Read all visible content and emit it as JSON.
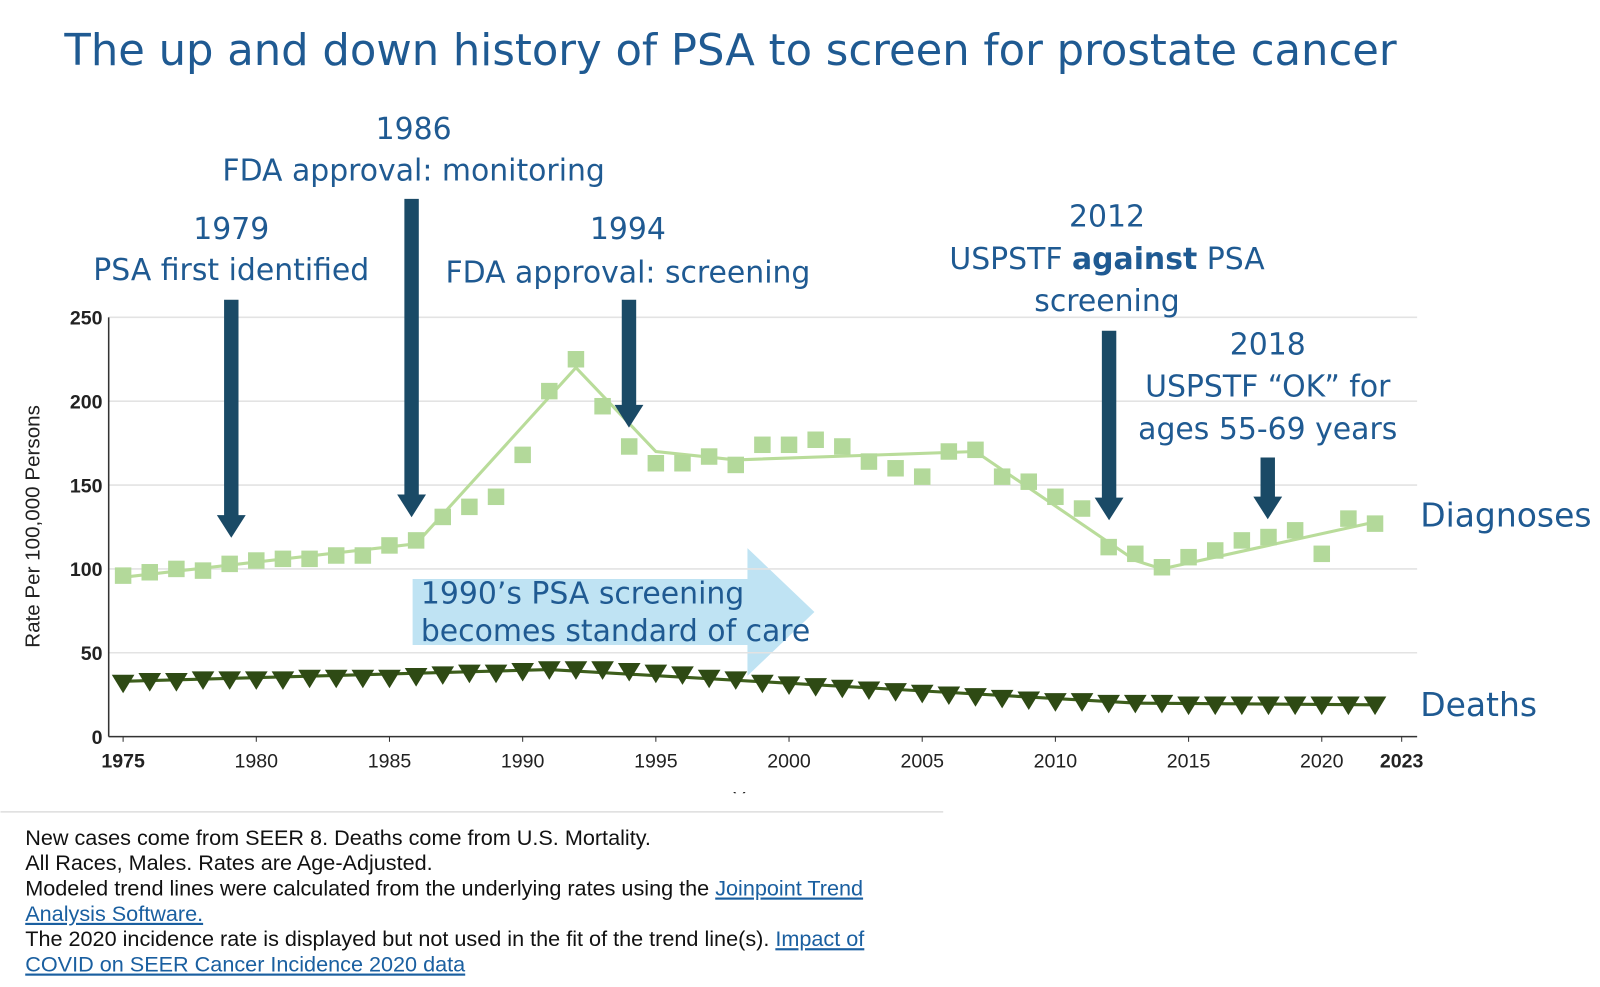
{
  "title": "The up and down history of PSA to screen for prostate cancer",
  "chart_data": {
    "type": "scatter",
    "xlabel": "Year",
    "ylabel": "Rate Per 100,000 Persons",
    "xlim": [
      1975,
      2023
    ],
    "xticks": [
      1975,
      1980,
      1985,
      1990,
      1995,
      2000,
      2005,
      2010,
      2015,
      2020,
      2023
    ],
    "ylim": [
      0,
      250
    ],
    "yticks": [
      0,
      50,
      100,
      150,
      200,
      250
    ],
    "grid": true,
    "x": [
      1975,
      1976,
      1977,
      1978,
      1979,
      1980,
      1981,
      1982,
      1983,
      1984,
      1985,
      1986,
      1987,
      1988,
      1989,
      1990,
      1991,
      1992,
      1993,
      1994,
      1995,
      1996,
      1997,
      1998,
      1999,
      2000,
      2001,
      2002,
      2003,
      2004,
      2005,
      2006,
      2007,
      2008,
      2009,
      2010,
      2011,
      2012,
      2013,
      2014,
      2015,
      2016,
      2017,
      2018,
      2019,
      2020,
      2021,
      2022
    ],
    "series": [
      {
        "name": "Diagnoses",
        "color": "#b3d99a",
        "marker": "square",
        "values": [
          96,
          98,
          100,
          99,
          103,
          105,
          106,
          106,
          108,
          108,
          114,
          117,
          131,
          137,
          143,
          168,
          206,
          225,
          197,
          173,
          163,
          163,
          167,
          162,
          174,
          174,
          177,
          173,
          164,
          160,
          155,
          170,
          171,
          155,
          152,
          143,
          136,
          113,
          109,
          101,
          107,
          111,
          117,
          119,
          123,
          109,
          130,
          127
        ],
        "trend": {
          "color": "#b9dc9a",
          "x": [
            1975,
            1986,
            1992,
            1995,
            1998,
            2007,
            2013,
            2014,
            2022
          ],
          "values": [
            95,
            115,
            220,
            170,
            165,
            170,
            105,
            100,
            128
          ]
        }
      },
      {
        "name": "Deaths",
        "color": "#2e4a14",
        "marker": "triangle",
        "values": [
          32,
          33,
          33,
          34,
          34,
          34,
          34,
          35,
          35,
          35,
          35,
          36,
          37,
          38,
          38,
          39,
          40,
          40,
          40,
          39,
          38,
          37,
          35,
          34,
          32,
          31,
          30,
          29,
          28,
          27,
          26,
          25,
          24,
          23,
          22,
          21,
          21,
          20,
          20,
          20,
          19,
          19,
          19,
          19,
          19,
          19,
          19,
          19
        ],
        "trend": {
          "color": "#3d5e1c",
          "x": [
            1975,
            1991,
            2013,
            2022
          ],
          "values": [
            33,
            40,
            20,
            19
          ]
        }
      }
    ]
  },
  "annotations": [
    {
      "lines": [
        [
          {
            "text": "1979"
          }
        ],
        [
          {
            "text": "PSA first identified"
          }
        ]
      ]
    },
    {
      "lines": [
        [
          {
            "text": "1986"
          }
        ],
        [
          {
            "text": "FDA approval: monitoring"
          }
        ]
      ]
    },
    {
      "lines": [
        [
          {
            "text": "1994"
          }
        ],
        [
          {
            "text": "FDA approval: screening"
          }
        ]
      ]
    },
    {
      "lines": [
        [
          {
            "text": "2012"
          }
        ],
        [
          {
            "text": "USPSTF "
          },
          {
            "text": "against",
            "bold": true
          },
          {
            "text": " PSA"
          }
        ],
        [
          {
            "text": "screening"
          }
        ]
      ]
    },
    {
      "lines": [
        [
          {
            "text": "2018"
          }
        ],
        [
          {
            "text": "USPSTF  “OK” for"
          }
        ],
        [
          {
            "text": "ages 55-69 years"
          }
        ]
      ]
    },
    {
      "lines": [
        [
          {
            "text": "1990’s PSA screening"
          }
        ],
        [
          {
            "text": "becomes standard of care"
          }
        ]
      ]
    }
  ],
  "footnotes": [
    [
      {
        "text": "New cases come from SEER 8. Deaths come from U.S. Mortality."
      }
    ],
    [
      {
        "text": "All Races, Males. Rates are Age-Adjusted."
      }
    ],
    [
      {
        "text": "Modeled trend lines were calculated from the underlying rates using the "
      },
      {
        "text": "Joinpoint Trend",
        "link": true
      }
    ],
    [
      {
        "text": "Analysis Software.",
        "link": true
      }
    ],
    [
      {
        "text": "The 2020 incidence rate is displayed but not used in the fit of the trend line(s). "
      },
      {
        "text": "Impact of",
        "link": true
      }
    ],
    [
      {
        "text": "COVID on SEER Cancer Incidence 2020 data",
        "link": true
      }
    ]
  ]
}
